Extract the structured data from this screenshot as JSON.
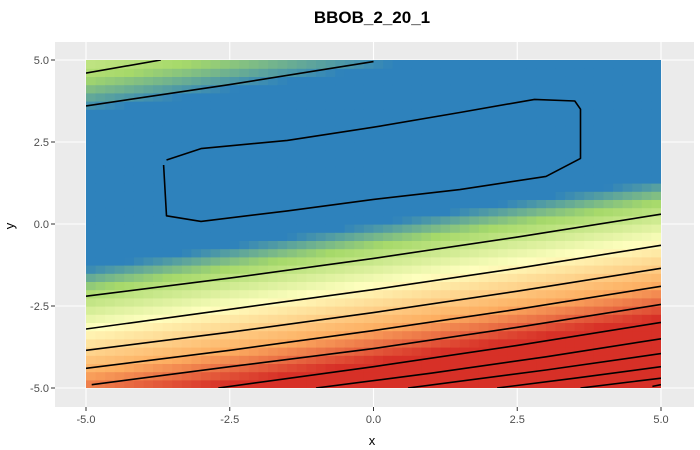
{
  "chart_data": {
    "type": "heatmap",
    "title": "BBOB_2_20_1",
    "xlabel": "x",
    "ylabel": "y",
    "xlim": [
      -5.0,
      5.0
    ],
    "ylim": [
      -5.0,
      5.0
    ],
    "x_ticks": [
      "-5.0",
      "-2.5",
      "0.0",
      "2.5",
      "5.0"
    ],
    "y_ticks": [
      "5.0",
      "2.5",
      "0.0",
      "-2.5",
      "-5.0"
    ],
    "x_tick_values": [
      -5.0,
      -2.5,
      0.0,
      2.5,
      5.0
    ],
    "y_tick_values": [
      5.0,
      2.5,
      0.0,
      -2.5,
      -5.0
    ],
    "grid": true,
    "colorscale": "Spectral",
    "colors": {
      "panel_background": "#ebebeb",
      "gridline": "#ffffff",
      "contour": "#000000",
      "high": "#d73027",
      "mid_high": "#fdae61",
      "mid": "#ffffbf",
      "mid_low": "#a6d96a",
      "low": "#2e82bc"
    },
    "contours": [
      [
        [
          -5.0,
          4.6
        ],
        [
          -3.7,
          5.0
        ]
      ],
      [
        [
          -5.0,
          3.6
        ],
        [
          -2.5,
          4.25
        ],
        [
          0.0,
          4.95
        ]
      ],
      [
        [
          -3.6,
          1.95
        ],
        [
          -3.0,
          2.3
        ],
        [
          -1.5,
          2.55
        ],
        [
          0.0,
          2.95
        ],
        [
          1.5,
          3.4
        ],
        [
          2.8,
          3.8
        ],
        [
          3.5,
          3.75
        ],
        [
          3.6,
          3.5
        ],
        [
          3.6,
          2.0
        ],
        [
          3.0,
          1.45
        ],
        [
          1.5,
          1.05
        ],
        [
          0.0,
          0.75
        ],
        [
          -1.5,
          0.4
        ],
        [
          -3.0,
          0.08
        ],
        [
          -3.6,
          0.25
        ],
        [
          -3.65,
          1.8
        ]
      ],
      [
        [
          -5.0,
          -2.2
        ],
        [
          -2.5,
          -1.65
        ],
        [
          0.0,
          -1.05
        ],
        [
          2.5,
          -0.4
        ],
        [
          5.0,
          0.3
        ]
      ],
      [
        [
          -5.0,
          -3.2
        ],
        [
          -2.5,
          -2.6
        ],
        [
          0.0,
          -2.0
        ],
        [
          2.5,
          -1.35
        ],
        [
          5.0,
          -0.65
        ]
      ],
      [
        [
          -5.0,
          -3.85
        ],
        [
          -2.5,
          -3.3
        ],
        [
          0.0,
          -2.7
        ],
        [
          2.5,
          -2.05
        ],
        [
          5.0,
          -1.35
        ]
      ],
      [
        [
          -5.0,
          -4.4
        ],
        [
          -2.5,
          -3.85
        ],
        [
          0.0,
          -3.25
        ],
        [
          2.5,
          -2.6
        ],
        [
          5.0,
          -1.9
        ]
      ],
      [
        [
          -4.9,
          -4.9
        ],
        [
          -2.5,
          -4.35
        ],
        [
          0.0,
          -3.8
        ],
        [
          2.5,
          -3.15
        ],
        [
          5.0,
          -2.45
        ]
      ],
      [
        [
          -2.7,
          -5.0
        ],
        [
          0.0,
          -4.35
        ],
        [
          2.5,
          -3.7
        ],
        [
          5.0,
          -3.0
        ]
      ],
      [
        [
          -1.0,
          -5.0
        ],
        [
          1.0,
          -4.55
        ],
        [
          3.0,
          -4.05
        ],
        [
          5.0,
          -3.5
        ]
      ],
      [
        [
          0.6,
          -5.0
        ],
        [
          3.0,
          -4.45
        ],
        [
          5.0,
          -3.95
        ]
      ],
      [
        [
          2.15,
          -5.0
        ],
        [
          3.5,
          -4.7
        ],
        [
          5.0,
          -4.35
        ]
      ],
      [
        [
          3.6,
          -5.0
        ],
        [
          5.0,
          -4.7
        ]
      ],
      [
        [
          4.85,
          -4.95
        ],
        [
          5.0,
          -4.9
        ]
      ]
    ]
  }
}
